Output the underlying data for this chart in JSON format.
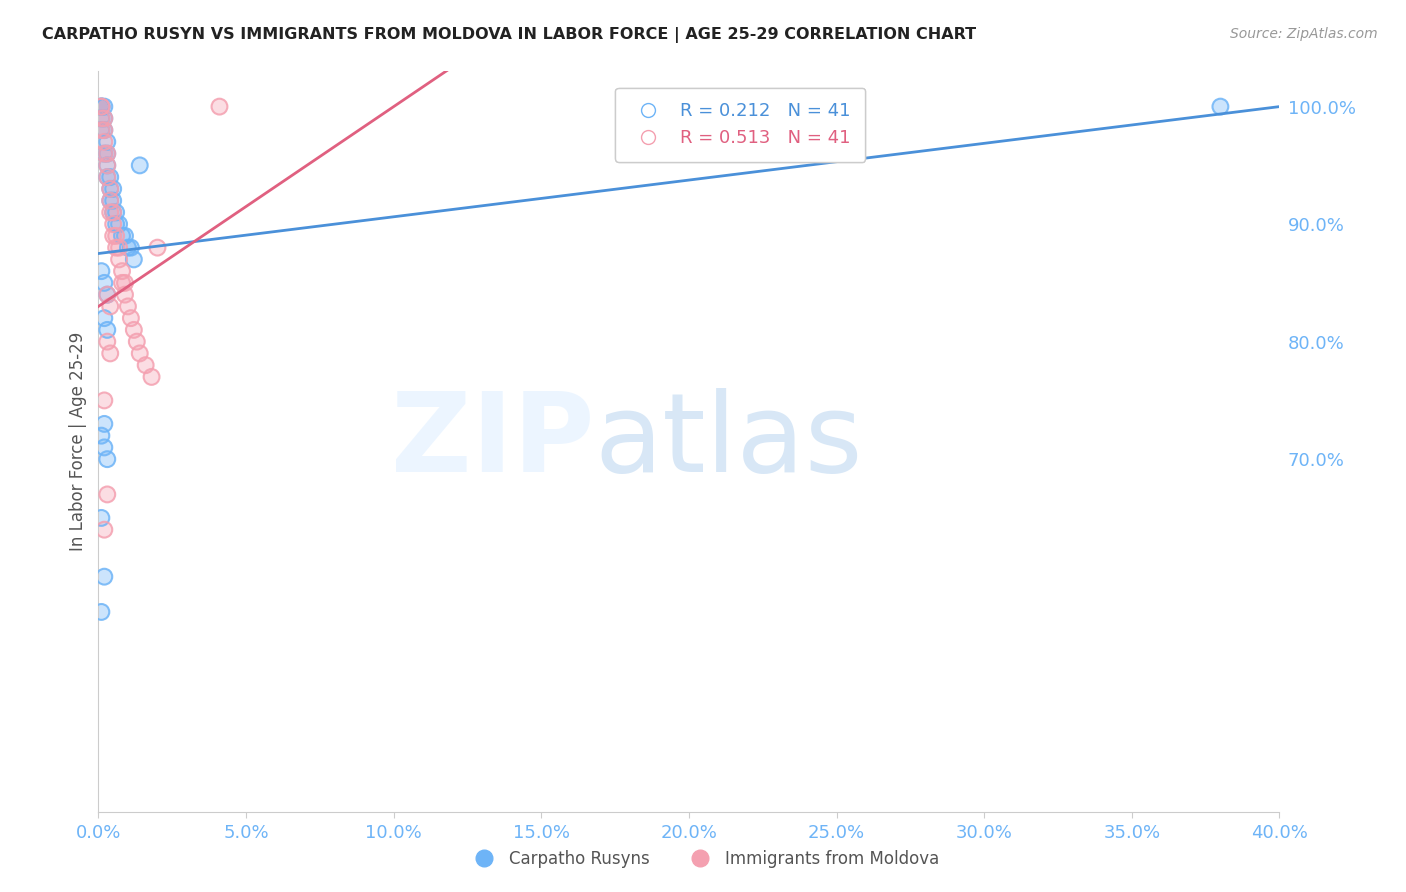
{
  "title": "CARPATHO RUSYN VS IMMIGRANTS FROM MOLDOVA IN LABOR FORCE | AGE 25-29 CORRELATION CHART",
  "source": "Source: ZipAtlas.com",
  "ylabel": "In Labor Force | Age 25-29",
  "xlim": [
    0.0,
    0.4
  ],
  "ylim": [
    0.4,
    1.03
  ],
  "ytick_vals": [
    0.7,
    0.8,
    0.9,
    1.0
  ],
  "ytick_labels": [
    "70.0%",
    "80.0%",
    "90.0%",
    "100.0%"
  ],
  "xtick_vals": [
    0.0,
    0.05,
    0.1,
    0.15,
    0.2,
    0.25,
    0.3,
    0.35,
    0.4
  ],
  "xtick_labels": [
    "0.0%",
    "5.0%",
    "10.0%",
    "15.0%",
    "20.0%",
    "25.0%",
    "30.0%",
    "35.0%",
    "40.0%"
  ],
  "blue_R": 0.212,
  "blue_N": 41,
  "pink_R": 0.513,
  "pink_N": 41,
  "blue_color": "#6eb4f7",
  "pink_color": "#f4a0b0",
  "blue_line_color": "#4a90d9",
  "pink_line_color": "#e06080",
  "tick_color": "#6eb4f7",
  "grid_color": "#c8d8ec",
  "legend_label_blue": "Carpatho Rusyns",
  "legend_label_pink": "Immigrants from Moldova",
  "blue_x": [
    0.001,
    0.001,
    0.001,
    0.001,
    0.001,
    0.002,
    0.002,
    0.002,
    0.002,
    0.003,
    0.003,
    0.003,
    0.003,
    0.004,
    0.004,
    0.004,
    0.005,
    0.005,
    0.005,
    0.006,
    0.006,
    0.007,
    0.008,
    0.009,
    0.01,
    0.011,
    0.012,
    0.014,
    0.001,
    0.002,
    0.003,
    0.002,
    0.003,
    0.002,
    0.001,
    0.002,
    0.003,
    0.001,
    0.002,
    0.001,
    0.38
  ],
  "blue_y": [
    1.0,
    1.0,
    1.0,
    0.99,
    0.98,
    1.0,
    0.99,
    0.98,
    0.96,
    0.97,
    0.96,
    0.95,
    0.94,
    0.94,
    0.93,
    0.92,
    0.93,
    0.92,
    0.91,
    0.91,
    0.9,
    0.9,
    0.89,
    0.89,
    0.88,
    0.88,
    0.87,
    0.95,
    0.86,
    0.85,
    0.84,
    0.82,
    0.81,
    0.73,
    0.72,
    0.71,
    0.7,
    0.65,
    0.6,
    0.57,
    1.0
  ],
  "pink_x": [
    0.001,
    0.001,
    0.001,
    0.001,
    0.002,
    0.002,
    0.002,
    0.002,
    0.003,
    0.003,
    0.003,
    0.004,
    0.004,
    0.004,
    0.005,
    0.005,
    0.005,
    0.006,
    0.006,
    0.007,
    0.007,
    0.008,
    0.008,
    0.009,
    0.009,
    0.01,
    0.011,
    0.012,
    0.013,
    0.014,
    0.016,
    0.018,
    0.02,
    0.003,
    0.004,
    0.003,
    0.004,
    0.002,
    0.003,
    0.002,
    0.041
  ],
  "pink_y": [
    1.0,
    1.0,
    0.99,
    0.98,
    0.99,
    0.98,
    0.97,
    0.96,
    0.96,
    0.95,
    0.94,
    0.93,
    0.92,
    0.91,
    0.91,
    0.9,
    0.89,
    0.89,
    0.88,
    0.88,
    0.87,
    0.86,
    0.85,
    0.85,
    0.84,
    0.83,
    0.82,
    0.81,
    0.8,
    0.79,
    0.78,
    0.77,
    0.88,
    0.84,
    0.83,
    0.8,
    0.79,
    0.75,
    0.67,
    0.64,
    1.0
  ]
}
